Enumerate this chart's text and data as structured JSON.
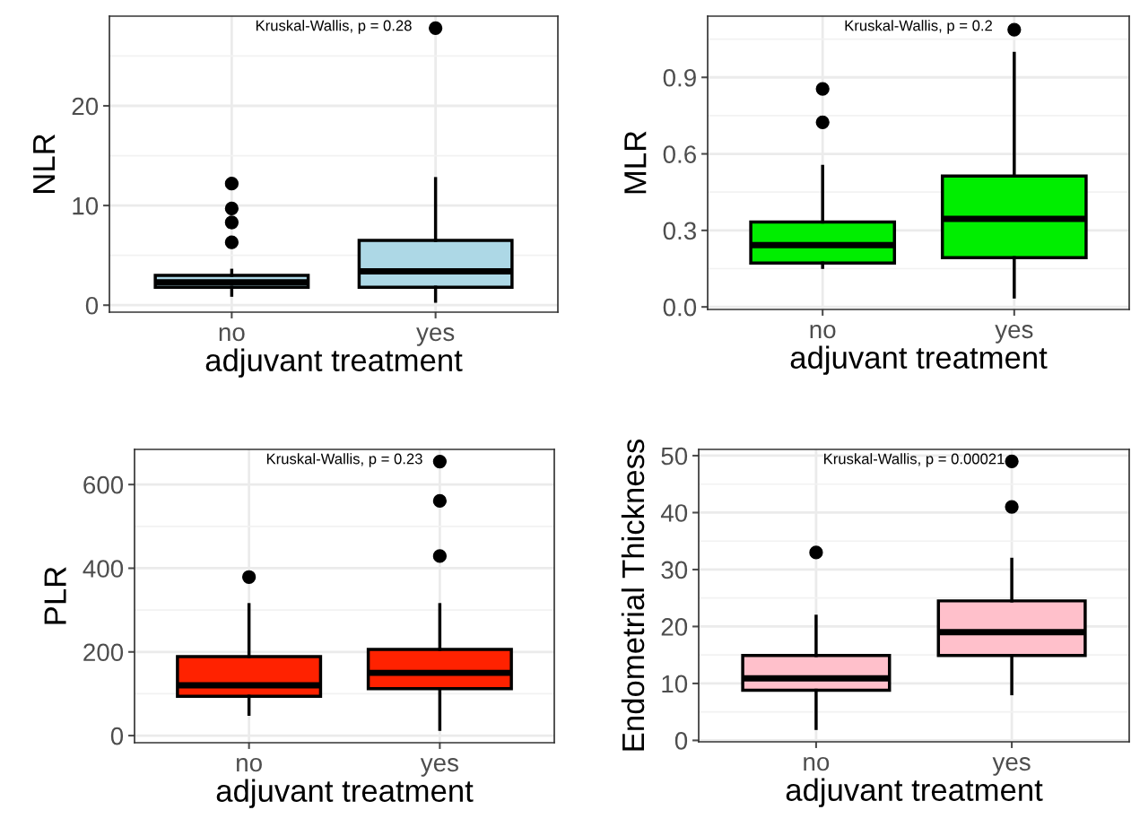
{
  "chart_data": [
    {
      "type": "box",
      "categories": [
        "no",
        "yes"
      ],
      "xlabel": "adjuvant treatment",
      "ylabel": "NLR",
      "colors": [
        "#add8e6",
        "#add8e6"
      ],
      "ylim": [
        -0.7,
        29
      ],
      "yticks": [
        0,
        {
          "value": 5,
          "label": null
        },
        10,
        {
          "value": 15,
          "label": null
        },
        20,
        {
          "value": 25,
          "label": null
        }
      ],
      "grid": true,
      "legend": false,
      "annotations": [
        "Kruskal-Wallis, p = 0.28"
      ],
      "boxes": [
        {
          "low": 1.0,
          "q1": 1.8,
          "median": 2.3,
          "q3": 3.0,
          "high": 3.5,
          "outliers": [
            6.3,
            8.3,
            9.7,
            12.2
          ]
        },
        {
          "low": 0.4,
          "q1": 1.8,
          "median": 3.4,
          "q3": 6.5,
          "high": 12.7,
          "outliers": [
            27.8
          ]
        }
      ]
    },
    {
      "type": "box",
      "categories": [
        "no",
        "yes"
      ],
      "xlabel": "adjuvant treatment",
      "ylabel": "MLR",
      "colors": [
        "#00ee00",
        "#00ee00"
      ],
      "ylim": [
        -0.01,
        1.14
      ],
      "yticks": [
        {
          "value": 0,
          "label": "0.0"
        },
        {
          "value": 0.15,
          "label": null
        },
        0.3,
        {
          "value": 0.45,
          "label": null
        },
        0.6,
        {
          "value": 0.75,
          "label": null
        },
        0.9,
        {
          "value": 1.05,
          "label": null
        }
      ],
      "grid": true,
      "legend": false,
      "annotations": [
        "Kruskal-Wallis, p = 0.2"
      ],
      "boxes": [
        {
          "low": 0.155,
          "q1": 0.172,
          "median": 0.242,
          "q3": 0.333,
          "high": 0.551,
          "outliers": [
            0.724,
            0.855
          ]
        },
        {
          "low": 0.039,
          "q1": 0.193,
          "median": 0.345,
          "q3": 0.513,
          "high": 0.994,
          "outliers": [
            1.087
          ]
        }
      ]
    },
    {
      "type": "box",
      "categories": [
        "no",
        "yes"
      ],
      "xlabel": "adjuvant treatment",
      "ylabel": "PLR",
      "colors": [
        "#ff2200",
        "#ff2200"
      ],
      "ylim": [
        -17,
        684
      ],
      "yticks": [
        0,
        {
          "value": 100,
          "label": null
        },
        200,
        {
          "value": 300,
          "label": null
        },
        400,
        {
          "value": 500,
          "label": null
        },
        600
      ],
      "grid": true,
      "legend": false,
      "annotations": [
        "Kruskal-Wallis, p = 0.23"
      ],
      "boxes": [
        {
          "low": 51,
          "q1": 94,
          "median": 120,
          "q3": 189,
          "high": 313,
          "outliers": [
            379
          ]
        },
        {
          "low": 15,
          "q1": 112,
          "median": 150,
          "q3": 206,
          "high": 313,
          "outliers": [
            429,
            561,
            655
          ]
        }
      ]
    },
    {
      "type": "box",
      "categories": [
        "no",
        "yes"
      ],
      "xlabel": "adjuvant treatment",
      "ylabel": "Endometrial Thickness",
      "colors": [
        "#ffc0cb",
        "#ffc0cb"
      ],
      "ylim": [
        -0.25,
        51.1
      ],
      "yticks": [
        0,
        {
          "value": 5,
          "label": null
        },
        10,
        {
          "value": 15,
          "label": null
        },
        20,
        {
          "value": 25,
          "label": null
        },
        30,
        {
          "value": 35,
          "label": null
        },
        40,
        {
          "value": 45,
          "label": null
        },
        50
      ],
      "grid": true,
      "legend": false,
      "annotations": [
        "Kruskal-Wallis, p = 0.00021"
      ],
      "boxes": [
        {
          "low": 2.1,
          "q1": 8.8,
          "median": 10.9,
          "q3": 14.9,
          "high": 21.8,
          "outliers": [
            33.0
          ]
        },
        {
          "low": 8.2,
          "q1": 14.9,
          "median": 19.0,
          "q3": 24.5,
          "high": 31.8,
          "outliers": [
            41,
            49
          ]
        }
      ]
    }
  ]
}
